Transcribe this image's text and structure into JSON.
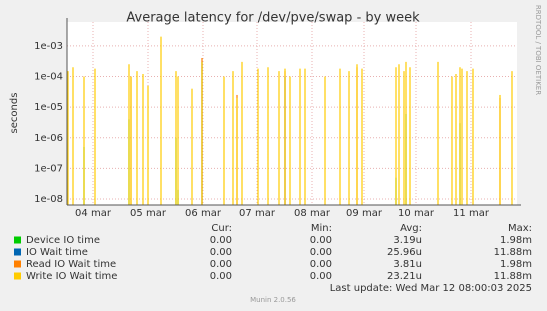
{
  "chart_data": {
    "type": "stem",
    "title": "Average latency for /dev/pve/swap - by week",
    "y_label": "seconds",
    "side_text": "RRDTOOL / TOBI OETIKER",
    "log_y": true,
    "grid": true,
    "ylim": [
      6.4e-09,
      0.006
    ],
    "yticks": [
      {
        "value": 1e-08,
        "label": "1e-08"
      },
      {
        "value": 1e-07,
        "label": "1e-07"
      },
      {
        "value": 1e-06,
        "label": "1e-06"
      },
      {
        "value": 1e-05,
        "label": "1e-05"
      },
      {
        "value": 0.0001,
        "label": "1e-04"
      },
      {
        "value": 0.001,
        "label": "1e-03"
      }
    ],
    "xlim": [
      0,
      90
    ],
    "xticks": [
      {
        "value": 5.2,
        "label": "04 mar"
      },
      {
        "value": 16.2,
        "label": "05 mar"
      },
      {
        "value": 27.2,
        "label": "06 mar"
      },
      {
        "value": 38,
        "label": "07 mar"
      },
      {
        "value": 49,
        "label": "08 mar"
      },
      {
        "value": 59.4,
        "label": "09 mar"
      },
      {
        "value": 69.8,
        "label": "10 mar"
      },
      {
        "value": 80.8,
        "label": "11 mar"
      }
    ],
    "x": [
      0.2,
      1.2,
      3.4,
      5.6,
      12.4,
      12.8,
      14,
      15.2,
      16.2,
      18.8,
      21.8,
      22.2,
      25,
      27,
      31.4,
      33.2,
      34,
      35,
      38.2,
      40.2,
      42.4,
      43.6,
      44.6,
      46.6,
      47.6,
      51.6,
      54.6,
      56.4,
      58,
      59,
      65.8,
      66.4,
      67.4,
      67.8,
      68.6,
      74.2,
      77,
      77.8,
      78.6,
      79,
      80,
      81.2,
      86.6,
      89
    ],
    "series": [
      {
        "name": "Device IO time",
        "color": "#00cc00",
        "values": [
          null,
          null,
          5e-07,
          null,
          4e-06,
          null,
          null,
          null,
          null,
          null,
          1e-06,
          2e-08,
          null,
          null,
          null,
          null,
          null,
          null,
          null,
          null,
          null,
          null,
          null,
          null,
          null,
          null,
          null,
          null,
          null,
          null,
          5e-08,
          null,
          null,
          6e-06,
          null,
          null,
          null,
          null,
          3e-06,
          null,
          null,
          null,
          null,
          null
        ]
      },
      {
        "name": "IO Wait time",
        "color": "#0066b3",
        "values": [
          null,
          null,
          null,
          null,
          null,
          null,
          null,
          null,
          null,
          null,
          null,
          null,
          null,
          0.0003,
          null,
          null,
          null,
          null,
          null,
          null,
          null,
          0.0001,
          null,
          null,
          null,
          null,
          null,
          null,
          null,
          null,
          null,
          null,
          null,
          null,
          null,
          null,
          null,
          null,
          null,
          null,
          null,
          null,
          null,
          null
        ]
      },
      {
        "name": "Read IO Wait time",
        "color": "#ff8000",
        "values": [
          null,
          null,
          null,
          null,
          null,
          0.0001,
          null,
          null,
          null,
          null,
          null,
          null,
          null,
          0.0004,
          null,
          null,
          2.5e-05,
          null,
          null,
          null,
          null,
          0.00015,
          null,
          null,
          null,
          null,
          null,
          null,
          0.0002,
          null,
          null,
          null,
          null,
          null,
          null,
          null,
          null,
          null,
          null,
          null,
          null,
          null,
          2e-05,
          null
        ]
      },
      {
        "name": "Write IO Wait time",
        "color": "#ffcc00",
        "values": [
          0.00015,
          0.0002,
          0.0001,
          0.00018,
          0.00025,
          0.0001,
          0.00015,
          0.00012,
          5e-05,
          0.002,
          0.00015,
          0.0001,
          4e-05,
          0.0003,
          0.0001,
          0.00015,
          2e-05,
          0.0003,
          0.00018,
          0.0002,
          0.00015,
          0.00018,
          0.0001,
          0.00018,
          0.00018,
          0.0001,
          0.00018,
          0.00015,
          0.00025,
          0.00018,
          0.0002,
          0.00025,
          0.00015,
          0.0003,
          0.0002,
          0.0003,
          0.0001,
          0.00012,
          0.0002,
          0.00018,
          0.00015,
          0.00018,
          2.5e-05,
          0.00015
        ]
      }
    ],
    "legend": {
      "headers": [
        "Cur:",
        "Min:",
        "Avg:",
        "Max:"
      ],
      "rows": [
        [
          "0.00",
          "0.00",
          "3.19u",
          "1.98m"
        ],
        [
          "0.00",
          "0.00",
          "25.96u",
          "11.88m"
        ],
        [
          "0.00",
          "0.00",
          "3.81u",
          "1.98m"
        ],
        [
          "0.00",
          "0.00",
          "23.21u",
          "11.88m"
        ]
      ]
    },
    "last_update": "Last update: Wed Mar 12 08:00:03 2025",
    "footer": "Munin 2.0.56"
  }
}
